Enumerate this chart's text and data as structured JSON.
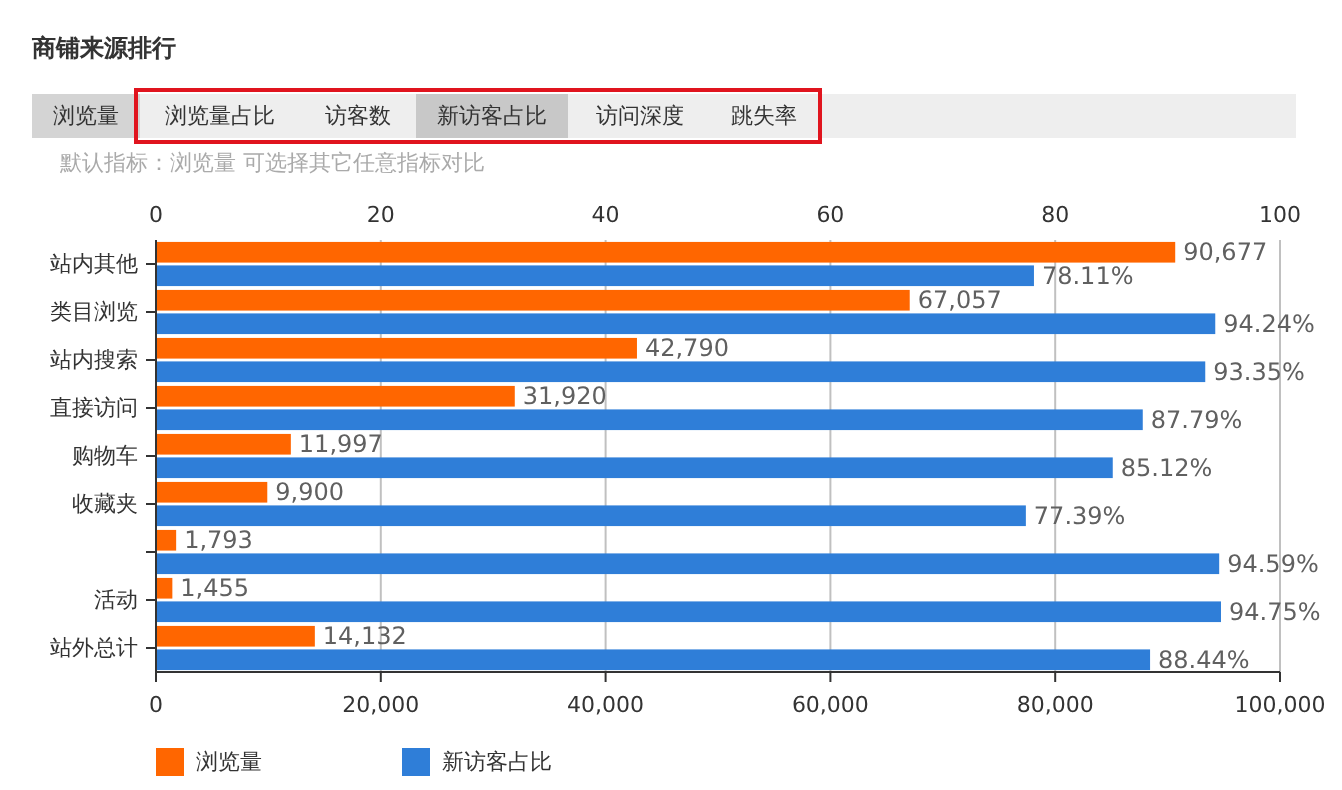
{
  "chart_data": {
    "type": "bar",
    "title": "商铺来源排行",
    "subtitle": "默认指标：浏览量 可选择其它任意指标对比",
    "annotations": [
      "浏览量",
      "浏览量占比",
      "访客数",
      "新访客占比",
      "访问深度",
      "跳失率"
    ],
    "orientation": "horizontal",
    "categories": [
      "站内其他",
      "类目浏览",
      "站内搜索",
      "直接访问",
      "购物车",
      "收藏夹",
      null,
      "活动",
      "站外总计"
    ],
    "series": [
      {
        "name": "浏览量",
        "color": "#ff6600",
        "values": [
          90677,
          67057,
          42790,
          31920,
          11997,
          9900,
          1793,
          1455,
          14132
        ],
        "value_labels": [
          "90,677",
          "67,057",
          "42,790",
          "31,920",
          "11,997",
          "9,900",
          "1,793",
          "1,455",
          "14,132"
        ]
      },
      {
        "name": "新访客占比",
        "color": "#2f7ed8",
        "axis": "x2",
        "values": [
          78.11,
          94.24,
          93.35,
          87.79,
          85.12,
          77.39,
          94.59,
          94.75,
          88.44
        ],
        "value_labels": [
          "78.11%",
          "94.24%",
          "93.35%",
          "87.79%",
          "85.12%",
          "77.39%",
          "94.59%",
          "94.75%",
          "88.44%"
        ]
      }
    ],
    "xlim": [
      0,
      100000
    ],
    "xticks": [
      0,
      {
        "value": 20000,
        "label": "20,000"
      },
      {
        "value": 40000,
        "label": "40,000"
      },
      {
        "value": 60000,
        "label": "60,000"
      },
      {
        "value": 80000,
        "label": "80,000"
      },
      {
        "value": 100000,
        "label": "100,000"
      }
    ],
    "x2lim": [
      0,
      100
    ],
    "x2ticks": [
      0,
      20,
      40,
      60,
      80,
      100
    ],
    "grid": "x",
    "legend": "bottom left"
  }
}
